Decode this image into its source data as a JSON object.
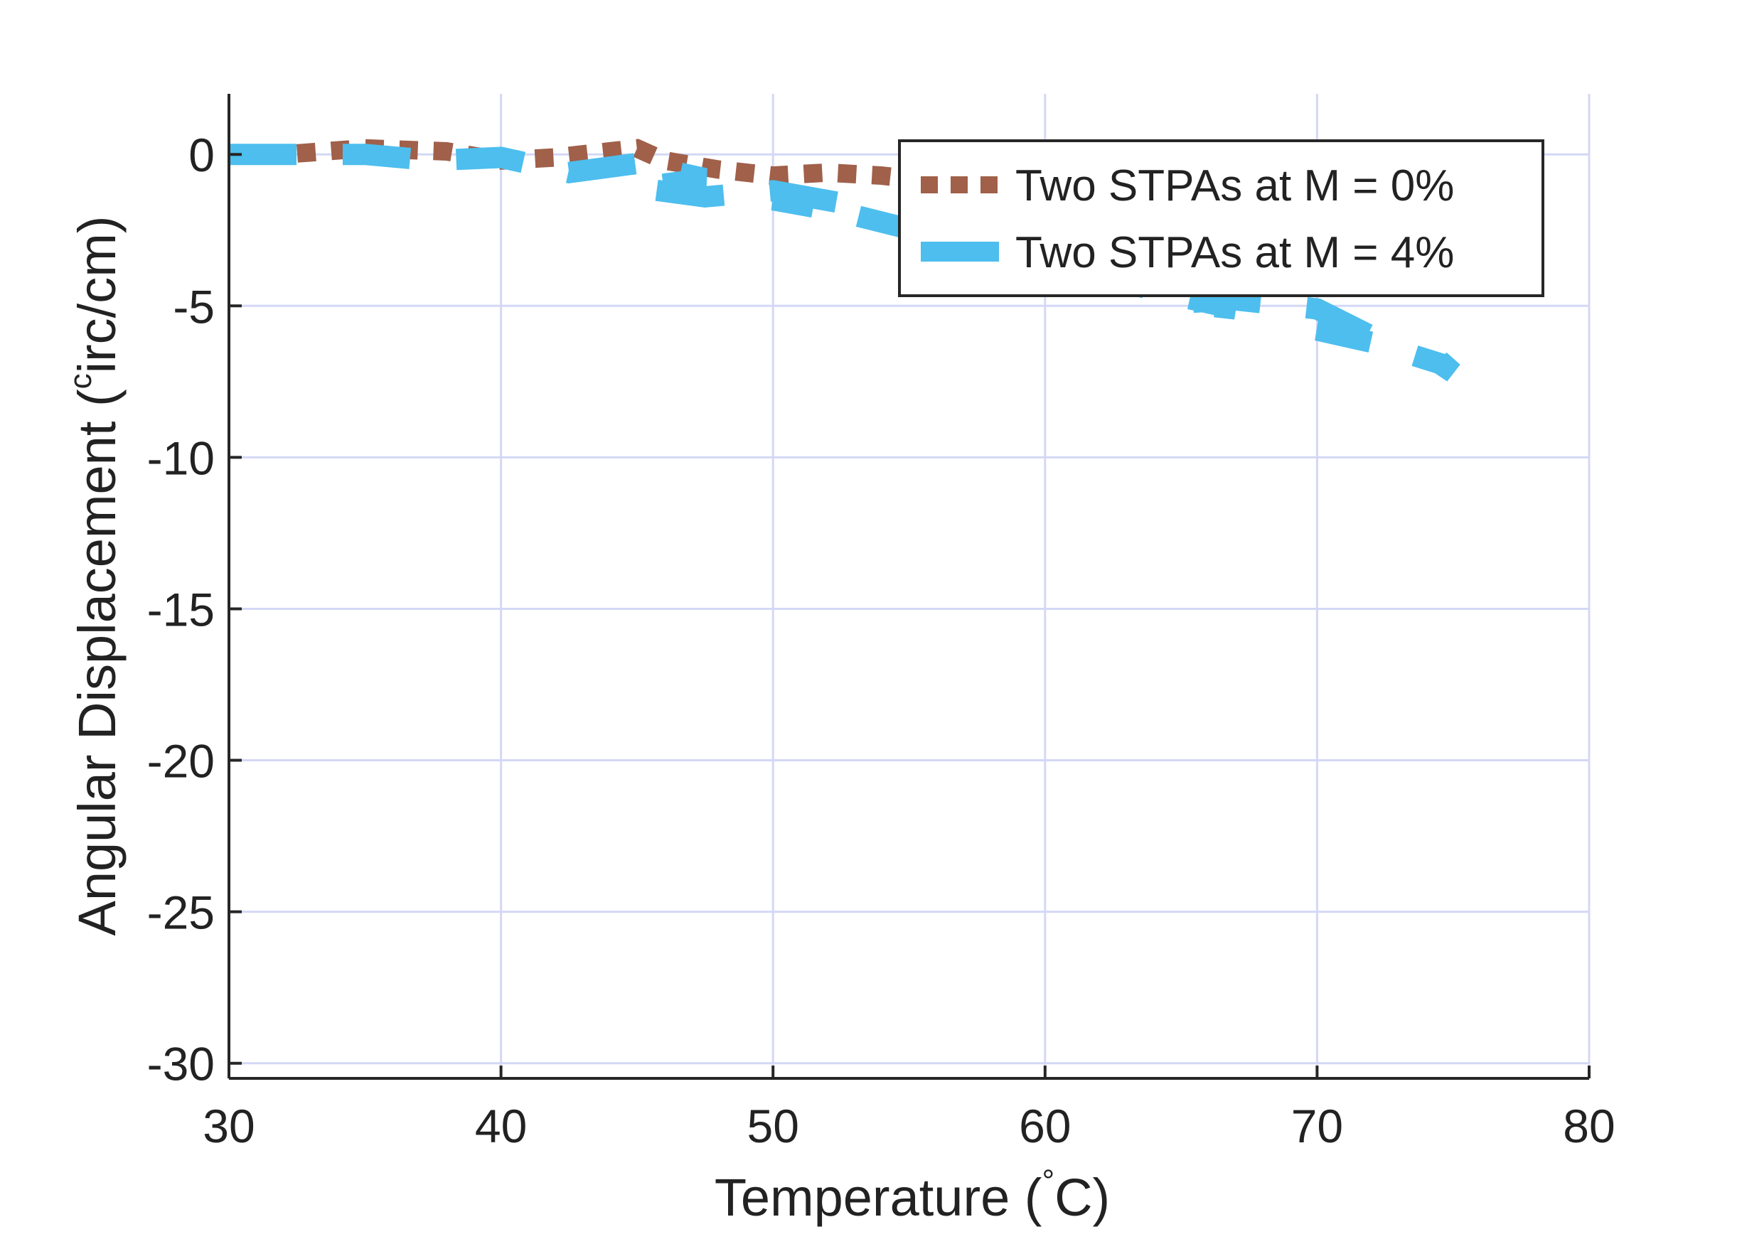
{
  "chart_data": {
    "type": "line",
    "xlabel": "Temperature (°C)",
    "ylabel": "Angular Displacement (circ/cm)",
    "xlim": [
      30,
      80
    ],
    "ylim": [
      -30.5,
      2
    ],
    "xticks": [
      30,
      40,
      50,
      60,
      70,
      80
    ],
    "yticks": [
      0,
      -5,
      -10,
      -15,
      -20,
      -25,
      -30
    ],
    "grid": true,
    "legend_position": "top-right",
    "series": [
      {
        "name": "Two STPAs at M = 0%",
        "color": "#A0604A",
        "style": "dotted",
        "x": [
          30,
          32,
          35,
          38,
          40,
          42,
          44,
          45,
          46,
          48,
          50,
          52,
          54,
          56,
          58
        ],
        "y": [
          0,
          0,
          0.2,
          0.1,
          -0.2,
          -0.1,
          0.1,
          0.2,
          -0.2,
          -0.5,
          -0.7,
          -0.6,
          -0.7,
          -0.9,
          -0.8
        ]
      },
      {
        "name": "Two STPAs at M = 4%",
        "color": "#4DBEEE",
        "style": "dashed",
        "x": [
          30,
          32.5,
          35,
          37.5,
          40,
          42.5,
          45,
          47.5,
          45,
          47.5,
          50,
          52.5,
          50,
          52.5,
          65,
          67,
          65,
          67,
          70,
          72,
          70,
          72,
          74.5,
          75,
          74.5,
          75
        ],
        "y": [
          0,
          0,
          0,
          -0.2,
          -0.1,
          -0.6,
          -0.3,
          -0.8,
          -1.1,
          -1.4,
          -1.2,
          -1.6,
          -1.5,
          -1.9,
          -4.7,
          -5.1,
          -4.9,
          -4.8,
          -5.1,
          -6.0,
          -5.8,
          -6.2,
          -6.9,
          -7.2,
          -6.8,
          -7.4
        ]
      }
    ]
  }
}
